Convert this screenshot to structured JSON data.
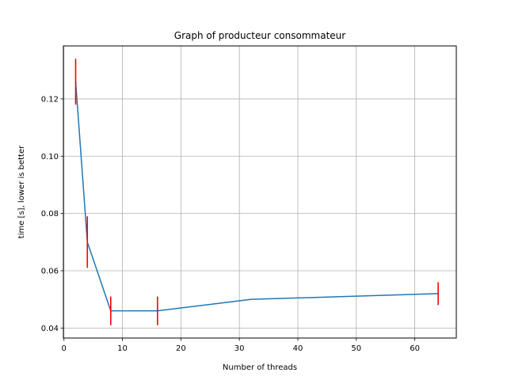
{
  "chart_data": {
    "type": "line",
    "title": "Graph of producteur consommateur",
    "xlabel": "Number of threads",
    "ylabel": "time [s], lower is better",
    "xlim": [
      -0.1,
      67.1
    ],
    "ylim": [
      0.0365,
      0.1385
    ],
    "xticks": [
      0,
      10,
      20,
      30,
      40,
      50,
      60
    ],
    "xtick_labels": [
      "0",
      "10",
      "20",
      "30",
      "40",
      "50",
      "60"
    ],
    "yticks": [
      0.04,
      0.06,
      0.08,
      0.1,
      0.12
    ],
    "ytick_labels": [
      "0.04",
      "0.06",
      "0.08",
      "0.10",
      "0.12"
    ],
    "grid": true,
    "series": [
      {
        "x": [
          2,
          4,
          8,
          16,
          32,
          64
        ],
        "y": [
          0.126,
          0.07,
          0.046,
          0.046,
          0.05,
          0.052
        ],
        "color": "#1f77b4"
      }
    ],
    "error_bars": [
      {
        "x": 2,
        "low": 0.118,
        "high": 0.134
      },
      {
        "x": 4,
        "low": 0.061,
        "high": 0.079
      },
      {
        "x": 8,
        "low": 0.041,
        "high": 0.051
      },
      {
        "x": 16,
        "low": 0.041,
        "high": 0.051
      },
      {
        "x": 64,
        "low": 0.048,
        "high": 0.056
      }
    ],
    "error_bar_color": "#ff0000"
  }
}
